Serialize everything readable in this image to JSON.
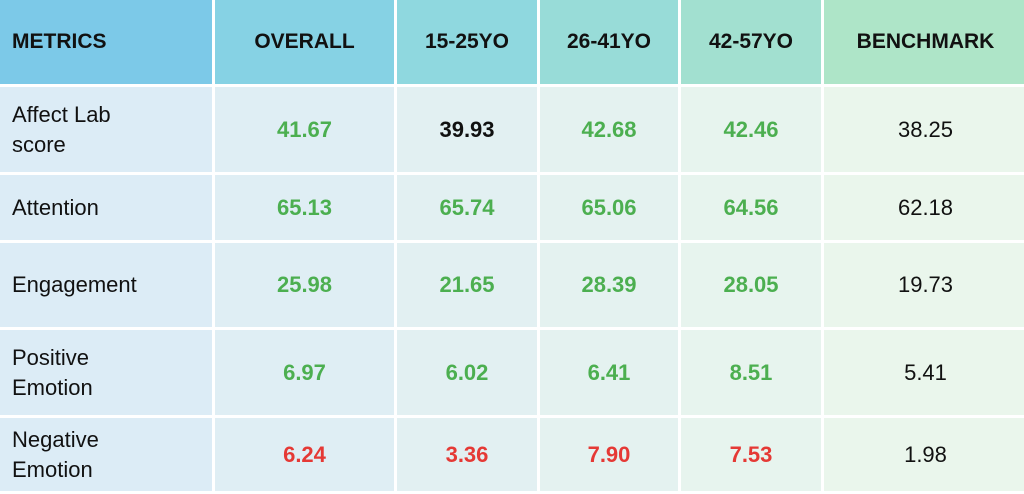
{
  "table": {
    "header": [
      "METRICS",
      "OVERALL",
      "15-25YO",
      "26-41YO",
      "42-57YO",
      "BENCHMARK"
    ],
    "rows": [
      [
        "Affect Lab score",
        "41.67",
        "39.93",
        "42.68",
        "42.46",
        "38.25"
      ],
      [
        "Attention",
        "65.13",
        "65.74",
        "65.06",
        "64.56",
        "62.18"
      ],
      [
        "Engagement",
        "25.98",
        "21.65",
        "28.39",
        "28.05",
        "19.73"
      ],
      [
        "Positive Emotion",
        "6.97",
        "6.02",
        "6.41",
        "8.51",
        "5.41"
      ],
      [
        "Negative Emotion",
        "6.24",
        "3.36",
        "7.90",
        "7.53",
        "1.98"
      ]
    ],
    "text_colors": [
      [
        "#111111",
        "#4caf50",
        "#111111",
        "#4caf50",
        "#4caf50",
        "#111111"
      ],
      [
        "#111111",
        "#4caf50",
        "#4caf50",
        "#4caf50",
        "#4caf50",
        "#111111"
      ],
      [
        "#111111",
        "#4caf50",
        "#4caf50",
        "#4caf50",
        "#4caf50",
        "#111111"
      ],
      [
        "#111111",
        "#4caf50",
        "#4caf50",
        "#4caf50",
        "#4caf50",
        "#111111"
      ],
      [
        "#111111",
        "#e53935",
        "#e53935",
        "#e53935",
        "#e53935",
        "#111111"
      ]
    ]
  }
}
